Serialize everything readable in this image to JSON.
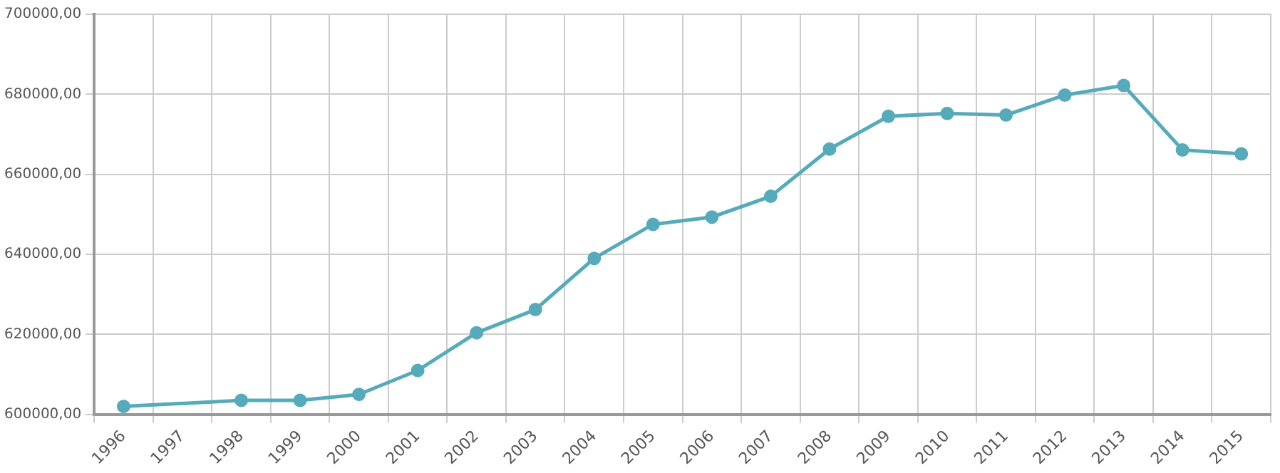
{
  "chart_data": {
    "type": "line",
    "categories": [
      "1996",
      "1997",
      "1998",
      "1999",
      "2000",
      "2001",
      "2002",
      "2003",
      "2004",
      "2005",
      "2006",
      "2007",
      "2008",
      "2009",
      "2010",
      "2011",
      "2012",
      "2013",
      "2014",
      "2015"
    ],
    "series": [
      {
        "color": "#56abbb",
        "values": [
          602000,
          null,
          603500,
          603500,
          605000,
          611000,
          620400,
          626200,
          639000,
          647500,
          649300,
          654500,
          666300,
          674500,
          675200,
          674800,
          679800,
          682200,
          666100,
          665100
        ]
      }
    ],
    "ylim": [
      600000,
      700000
    ],
    "yticks": [
      {
        "value": 600000,
        "label": "600000,00"
      },
      {
        "value": 620000,
        "label": "620000,00"
      },
      {
        "value": 640000,
        "label": "640000,00"
      },
      {
        "value": 660000,
        "label": "660000,00"
      },
      {
        "value": 680000,
        "label": "680000,00"
      },
      {
        "value": 700000,
        "label": "700000,00"
      }
    ],
    "grid": true,
    "marker": "circle",
    "line_style": "solid",
    "legend": false
  }
}
